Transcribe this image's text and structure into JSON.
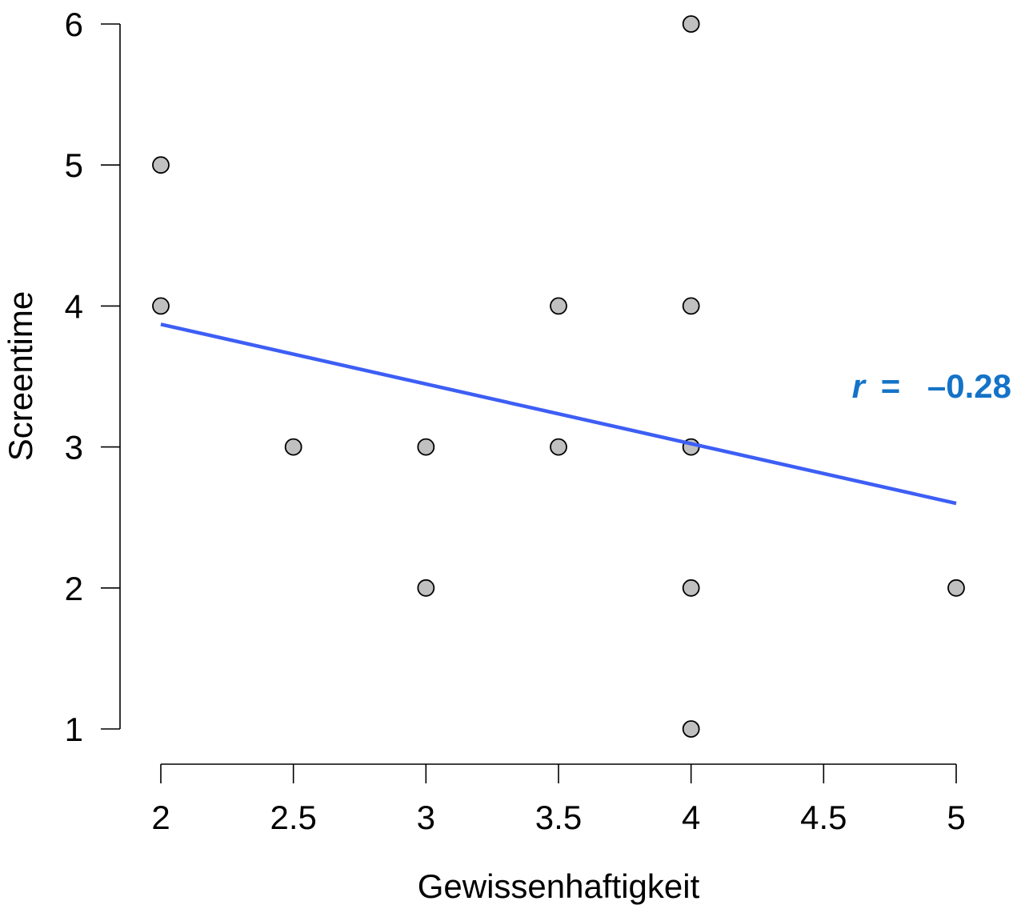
{
  "chart_data": {
    "type": "scatter",
    "title": "",
    "xlabel": "Gewissenhaftigkeit",
    "ylabel": "Screentime",
    "xlim": [
      2,
      5
    ],
    "ylim": [
      1,
      6
    ],
    "x_ticks": [
      2,
      2.5,
      3,
      3.5,
      4,
      4.5,
      5
    ],
    "x_tick_labels": [
      "2",
      "2.5",
      "3",
      "3.5",
      "4",
      "4.5",
      "5"
    ],
    "y_ticks": [
      1,
      2,
      3,
      4,
      5,
      6
    ],
    "y_tick_labels": [
      "1",
      "2",
      "3",
      "4",
      "5",
      "6"
    ],
    "grid": false,
    "series": [
      {
        "points": [
          {
            "x": 2,
            "y": 5
          },
          {
            "x": 2,
            "y": 4
          },
          {
            "x": 2.5,
            "y": 3
          },
          {
            "x": 3,
            "y": 3
          },
          {
            "x": 3,
            "y": 2
          },
          {
            "x": 3.5,
            "y": 4
          },
          {
            "x": 3.5,
            "y": 3
          },
          {
            "x": 4,
            "y": 6
          },
          {
            "x": 4,
            "y": 4
          },
          {
            "x": 4,
            "y": 3
          },
          {
            "x": 4,
            "y": 2
          },
          {
            "x": 4,
            "y": 1
          },
          {
            "x": 5,
            "y": 2
          }
        ]
      }
    ],
    "regression_line": {
      "x": [
        2,
        5
      ],
      "y": [
        3.87,
        2.6
      ]
    },
    "annotation": {
      "r_symbol": "r",
      "equals": "=",
      "value": "–0.28"
    },
    "colors": {
      "point_fill": "#c0c0c0",
      "point_stroke": "#000000",
      "line": "#3d5ef5",
      "annotation": "#1473c8"
    }
  }
}
